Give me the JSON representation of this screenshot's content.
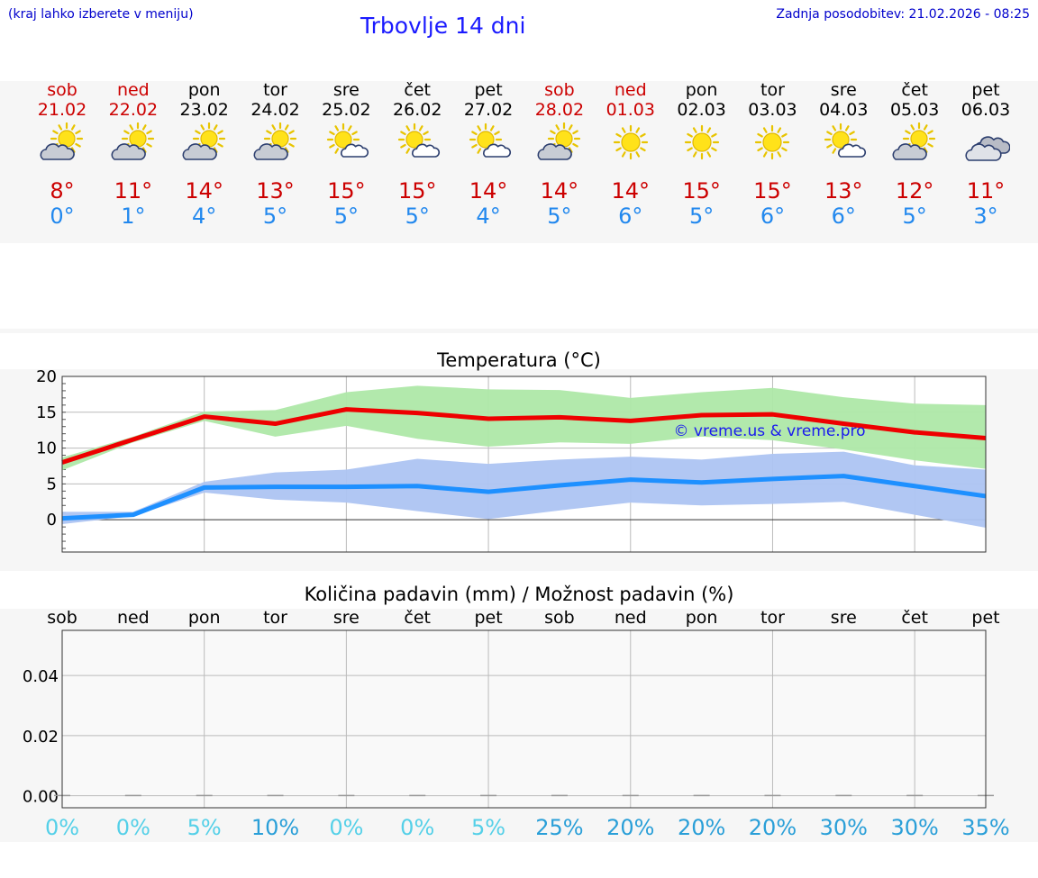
{
  "header": {
    "left_note": "(kraj lahko izberete v meniju)",
    "title": "Trbovlje 14 dni",
    "updated": "Zadnja posodobitev: 21.02.2026 - 08:25"
  },
  "days": [
    {
      "name": "sob",
      "date": "21.02",
      "weekend": true,
      "icon": "partly-cloudy-icon",
      "tmax": "8°",
      "tmin": "0°"
    },
    {
      "name": "ned",
      "date": "22.02",
      "weekend": true,
      "icon": "partly-cloudy-icon",
      "tmax": "11°",
      "tmin": "1°"
    },
    {
      "name": "pon",
      "date": "23.02",
      "weekend": false,
      "icon": "partly-cloudy-icon",
      "tmax": "14°",
      "tmin": "4°"
    },
    {
      "name": "tor",
      "date": "24.02",
      "weekend": false,
      "icon": "partly-cloudy-icon",
      "tmax": "13°",
      "tmin": "5°"
    },
    {
      "name": "sre",
      "date": "25.02",
      "weekend": false,
      "icon": "sun-small-cloud-icon",
      "tmax": "15°",
      "tmin": "5°"
    },
    {
      "name": "čet",
      "date": "26.02",
      "weekend": false,
      "icon": "sun-small-cloud-icon",
      "tmax": "15°",
      "tmin": "5°"
    },
    {
      "name": "pet",
      "date": "27.02",
      "weekend": false,
      "icon": "sun-small-cloud-icon",
      "tmax": "14°",
      "tmin": "4°"
    },
    {
      "name": "sob",
      "date": "28.02",
      "weekend": true,
      "icon": "partly-cloudy-icon",
      "tmax": "14°",
      "tmin": "5°"
    },
    {
      "name": "ned",
      "date": "01.03",
      "weekend": true,
      "icon": "sun-icon",
      "tmax": "14°",
      "tmin": "6°"
    },
    {
      "name": "pon",
      "date": "02.03",
      "weekend": false,
      "icon": "sun-icon",
      "tmax": "15°",
      "tmin": "5°"
    },
    {
      "name": "tor",
      "date": "03.03",
      "weekend": false,
      "icon": "sun-icon",
      "tmax": "15°",
      "tmin": "6°"
    },
    {
      "name": "sre",
      "date": "04.03",
      "weekend": false,
      "icon": "sun-small-cloud-icon",
      "tmax": "13°",
      "tmin": "6°"
    },
    {
      "name": "čet",
      "date": "05.03",
      "weekend": false,
      "icon": "partly-cloudy-icon",
      "tmax": "12°",
      "tmin": "5°"
    },
    {
      "name": "pet",
      "date": "06.03",
      "weekend": false,
      "icon": "cloudy-icon",
      "tmax": "11°",
      "tmin": "3°"
    }
  ],
  "colors": {
    "max_line": "#ee0000",
    "min_line": "#1e90ff",
    "max_band": "#aee8a8",
    "max_band_dark": "#7ccf7c",
    "min_band": "#adc4f2",
    "grid": "#bbbbbb",
    "prob_low": "#55d0e8",
    "prob_high": "#2a9fd8"
  },
  "chart_data": [
    {
      "type": "line",
      "title": "Temperatura (°C)",
      "watermark": "© vreme.us & vreme.pro",
      "x": [
        0,
        1,
        2,
        3,
        4,
        5,
        6,
        7,
        8,
        9,
        10,
        11,
        12,
        13
      ],
      "ylim": [
        -4.5,
        20
      ],
      "yticks": [
        0,
        5,
        10,
        15,
        20
      ],
      "series": [
        {
          "name": "max",
          "values": [
            8,
            11.2,
            14.4,
            13.4,
            15.4,
            14.9,
            14.1,
            14.3,
            13.8,
            14.6,
            14.7,
            13.4,
            12.2,
            11.4
          ]
        },
        {
          "name": "min",
          "values": [
            0.2,
            0.7,
            4.5,
            4.6,
            4.6,
            4.7,
            3.9,
            4.8,
            5.6,
            5.2,
            5.7,
            6.1,
            4.7,
            3.3
          ]
        }
      ],
      "bands": [
        {
          "name": "max-range",
          "upper": [
            8.7,
            11.6,
            15.1,
            15.3,
            17.8,
            18.7,
            18.2,
            18.1,
            17,
            17.8,
            18.4,
            17.1,
            16.2,
            16
          ],
          "lower": [
            6.9,
            10.8,
            13.8,
            11.6,
            13.1,
            11.3,
            10.2,
            10.8,
            10.6,
            11.6,
            11.1,
            9.8,
            8.3,
            7.1
          ]
        },
        {
          "name": "min-range",
          "upper": [
            1.1,
            1.1,
            5.3,
            6.6,
            7,
            8.5,
            7.8,
            8.4,
            8.8,
            8.4,
            9.2,
            9.5,
            7.6,
            7
          ],
          "lower": [
            -0.6,
            0.5,
            3.8,
            2.8,
            2.4,
            1.2,
            0.1,
            1.3,
            2.4,
            2,
            2.2,
            2.5,
            0.7,
            -1.1
          ]
        }
      ]
    },
    {
      "type": "bar",
      "title": "Količina padavin (mm) / Možnost padavin (%)",
      "categories": [
        "sob",
        "ned",
        "pon",
        "tor",
        "sre",
        "čet",
        "pet",
        "sob",
        "ned",
        "pon",
        "tor",
        "sre",
        "čet",
        "pet"
      ],
      "values": [
        0,
        0,
        0,
        0,
        0,
        0,
        0,
        0,
        0,
        0,
        0,
        0,
        0,
        0
      ],
      "ylim": [
        -0.004,
        0.055
      ],
      "yticks": [
        "0.00",
        "0.02",
        "0.04"
      ],
      "probabilities": [
        "0%",
        "0%",
        "5%",
        "10%",
        "0%",
        "0%",
        "5%",
        "25%",
        "20%",
        "20%",
        "20%",
        "30%",
        "30%",
        "35%"
      ]
    }
  ]
}
